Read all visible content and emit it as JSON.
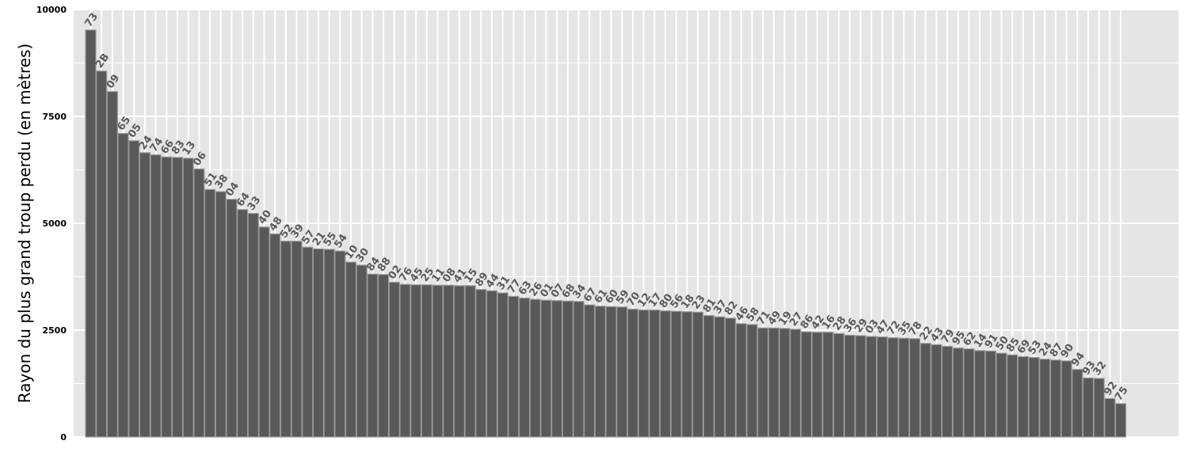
{
  "chart_data": {
    "type": "bar",
    "ylabel": "Rayon du plus grand troup perdu (en mètres)",
    "xlabel": "",
    "ylim": [
      0,
      10000
    ],
    "yticks": [
      0,
      2500,
      5000,
      7500,
      10000
    ],
    "grid": true,
    "colors": {
      "panel": "#e5e5e5",
      "grid": "#ffffff",
      "bar_fill": "#595959",
      "bar_stroke": "#9a9a9a",
      "label": "#5a5a5a"
    },
    "categories": [
      "73",
      "2B",
      "09",
      "65",
      "05",
      "24",
      "74",
      "66",
      "83",
      "13",
      "06",
      "51",
      "38",
      "04",
      "64",
      "33",
      "40",
      "48",
      "52",
      "39",
      "57",
      "21",
      "55",
      "54",
      "10",
      "30",
      "84",
      "88",
      "02",
      "76",
      "45",
      "25",
      "11",
      "08",
      "41",
      "15",
      "89",
      "44",
      "31",
      "77",
      "63",
      "26",
      "01",
      "07",
      "68",
      "34",
      "67",
      "61",
      "60",
      "59",
      "70",
      "12",
      "17",
      "80",
      "56",
      "18",
      "23",
      "81",
      "37",
      "82",
      "46",
      "58",
      "71",
      "49",
      "19",
      "27",
      "86",
      "42",
      "16",
      "28",
      "36",
      "29",
      "03",
      "47",
      "72",
      "35",
      "78",
      "22",
      "43",
      "79",
      "95",
      "62",
      "14",
      "91",
      "50",
      "85",
      "69",
      "53",
      "24",
      "87",
      "90",
      "94",
      "93",
      "32",
      "92",
      "75"
    ],
    "values": [
      9520,
      8560,
      8080,
      7100,
      6930,
      6650,
      6600,
      6550,
      6540,
      6520,
      6270,
      5790,
      5740,
      5560,
      5320,
      5230,
      4910,
      4750,
      4580,
      4580,
      4440,
      4400,
      4390,
      4350,
      4090,
      4020,
      3810,
      3800,
      3620,
      3570,
      3560,
      3560,
      3550,
      3550,
      3540,
      3540,
      3450,
      3420,
      3370,
      3290,
      3250,
      3220,
      3200,
      3190,
      3180,
      3170,
      3090,
      3060,
      3050,
      3040,
      2990,
      2970,
      2970,
      2950,
      2940,
      2930,
      2920,
      2840,
      2810,
      2780,
      2650,
      2630,
      2550,
      2550,
      2540,
      2520,
      2460,
      2450,
      2450,
      2420,
      2380,
      2370,
      2350,
      2340,
      2320,
      2310,
      2300,
      2190,
      2160,
      2120,
      2080,
      2060,
      2020,
      2010,
      1960,
      1920,
      1880,
      1860,
      1820,
      1800,
      1780,
      1580,
      1380,
      1370,
      900,
      780
    ]
  }
}
